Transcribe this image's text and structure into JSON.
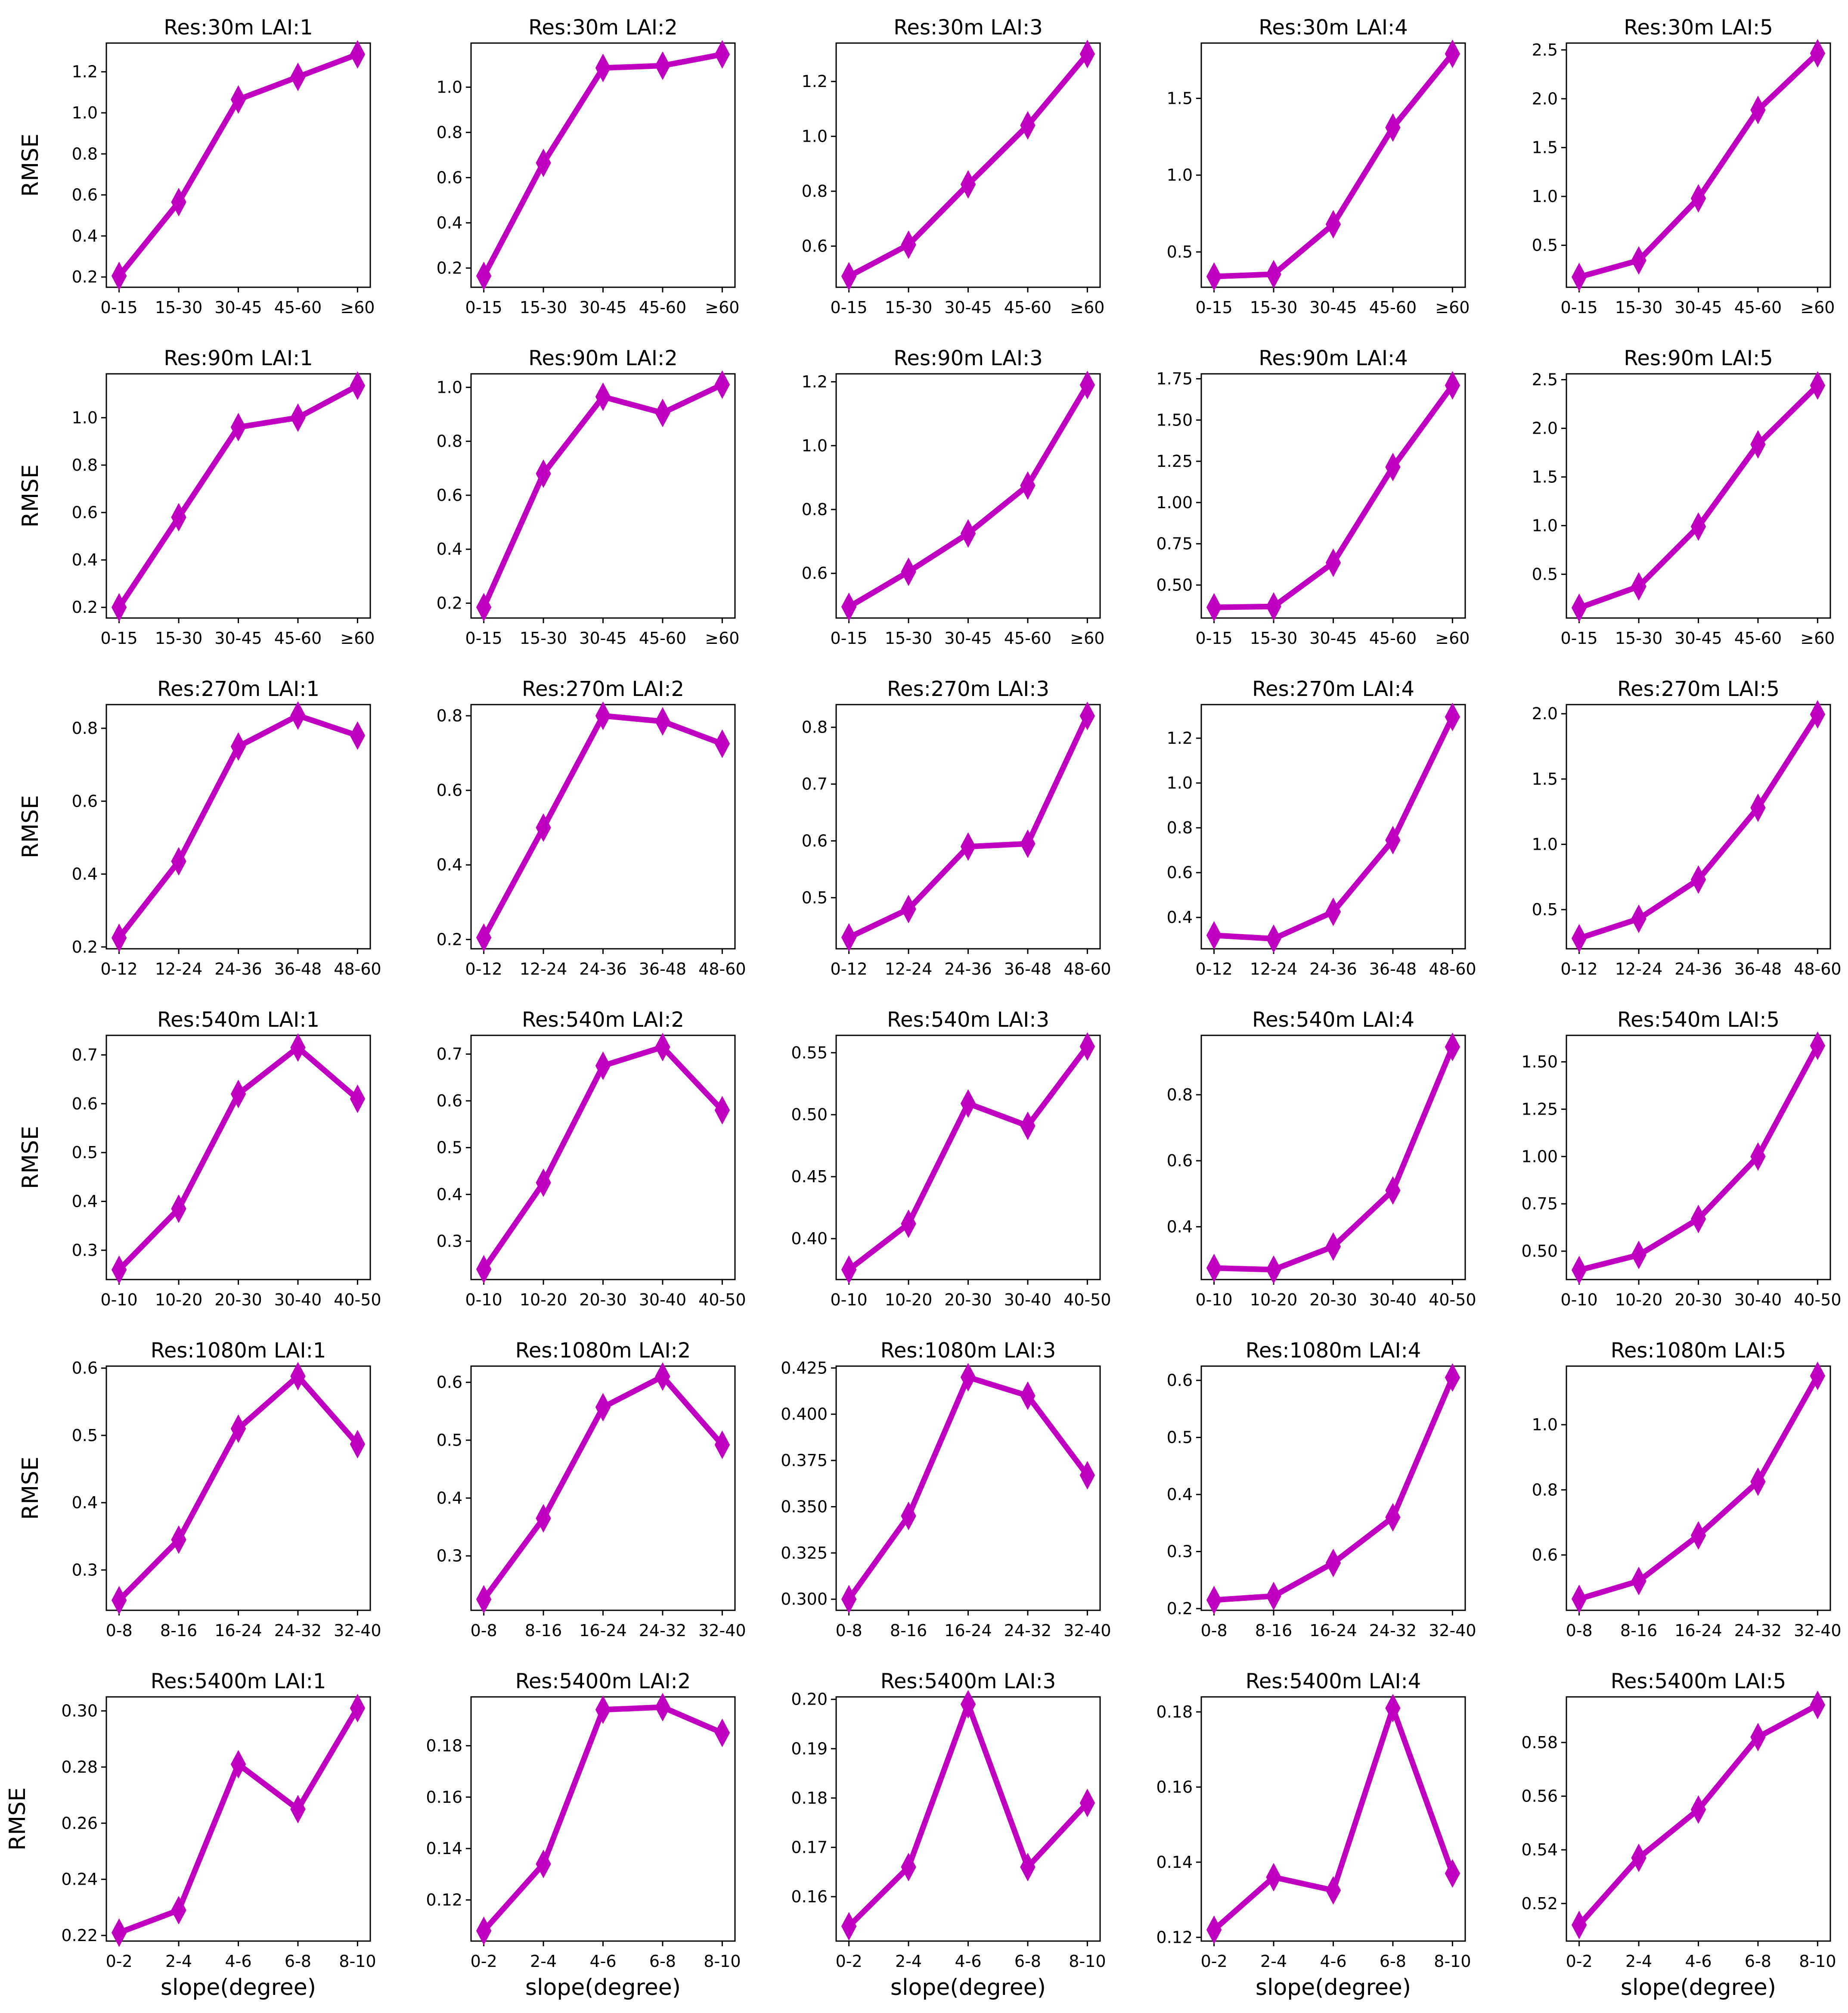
{
  "figure": {
    "ylabel": "RMSE",
    "xlabel": "slope(degree)",
    "line_color": "#C000C0",
    "marker": "thin-diamond"
  },
  "chart_data": [
    {
      "type": "line",
      "title": "Res:30m    LAI:1",
      "categories": [
        "0-15",
        "15-30",
        "30-45",
        "45-60",
        "≥60"
      ],
      "values": [
        0.205,
        0.565,
        1.065,
        1.175,
        1.285
      ],
      "yticks": [
        "0.2",
        "0.4",
        "0.6",
        "0.8",
        "1.0",
        "1.2"
      ],
      "ylim": [
        0.15,
        1.34
      ],
      "xlabel": "",
      "ylabel": "RMSE"
    },
    {
      "type": "line",
      "title": "Res:30m    LAI:2",
      "categories": [
        "0-15",
        "15-30",
        "30-45",
        "45-60",
        "≥60"
      ],
      "values": [
        0.165,
        0.665,
        1.085,
        1.095,
        1.145
      ],
      "yticks": [
        "0.2",
        "0.4",
        "0.6",
        "0.8",
        "1.0"
      ],
      "ylim": [
        0.115,
        1.195
      ],
      "xlabel": "",
      "ylabel": ""
    },
    {
      "type": "line",
      "title": "Res:30m    LAI:3",
      "categories": [
        "0-15",
        "15-30",
        "30-45",
        "45-60",
        "≥60"
      ],
      "values": [
        0.49,
        0.605,
        0.825,
        1.04,
        1.3
      ],
      "yticks": [
        "0.6",
        "0.8",
        "1.0",
        "1.2"
      ],
      "ylim": [
        0.45,
        1.34
      ],
      "xlabel": "",
      "ylabel": ""
    },
    {
      "type": "line",
      "title": "Res:30m    LAI:4",
      "categories": [
        "0-15",
        "15-30",
        "30-45",
        "45-60",
        "≥60"
      ],
      "values": [
        0.34,
        0.355,
        0.68,
        1.31,
        1.79
      ],
      "yticks": [
        "0.5",
        "1.0",
        "1.5"
      ],
      "ylim": [
        0.27,
        1.86
      ],
      "xlabel": "",
      "ylabel": ""
    },
    {
      "type": "line",
      "title": "Res:30m    LAI:5",
      "categories": [
        "0-15",
        "15-30",
        "30-45",
        "45-60",
        "≥60"
      ],
      "values": [
        0.175,
        0.345,
        0.98,
        1.885,
        2.465
      ],
      "yticks": [
        "0.5",
        "1.0",
        "1.5",
        "2.0",
        "2.5"
      ],
      "ylim": [
        0.07,
        2.57
      ],
      "xlabel": "",
      "ylabel": ""
    },
    {
      "type": "line",
      "title": "Res:90m    LAI:1",
      "categories": [
        "0-15",
        "15-30",
        "30-45",
        "45-60",
        "≥60"
      ],
      "values": [
        0.2,
        0.58,
        0.96,
        1.0,
        1.135
      ],
      "yticks": [
        "0.2",
        "0.4",
        "0.6",
        "0.8",
        "1.0"
      ],
      "ylim": [
        0.155,
        1.185
      ],
      "xlabel": "",
      "ylabel": "RMSE"
    },
    {
      "type": "line",
      "title": "Res:90m    LAI:2",
      "categories": [
        "0-15",
        "15-30",
        "30-45",
        "45-60",
        "≥60"
      ],
      "values": [
        0.185,
        0.68,
        0.965,
        0.905,
        1.01
      ],
      "yticks": [
        "0.2",
        "0.4",
        "0.6",
        "0.8",
        "1.0"
      ],
      "ylim": [
        0.145,
        1.05
      ],
      "xlabel": "",
      "ylabel": ""
    },
    {
      "type": "line",
      "title": "Res:90m    LAI:3",
      "categories": [
        "0-15",
        "15-30",
        "30-45",
        "45-60",
        "≥60"
      ],
      "values": [
        0.495,
        0.605,
        0.725,
        0.875,
        1.19
      ],
      "yticks": [
        "0.6",
        "0.8",
        "1.0",
        "1.2"
      ],
      "ylim": [
        0.46,
        1.225
      ],
      "xlabel": "",
      "ylabel": ""
    },
    {
      "type": "line",
      "title": "Res:90m    LAI:4",
      "categories": [
        "0-15",
        "15-30",
        "30-45",
        "45-60",
        "≥60"
      ],
      "values": [
        0.365,
        0.37,
        0.635,
        1.215,
        1.71
      ],
      "yticks": [
        "0.50",
        "0.75",
        "1.00",
        "1.25",
        "1.50",
        "1.75"
      ],
      "ylim": [
        0.3,
        1.78
      ],
      "xlabel": "",
      "ylabel": ""
    },
    {
      "type": "line",
      "title": "Res:90m    LAI:5",
      "categories": [
        "0-15",
        "15-30",
        "30-45",
        "45-60",
        "≥60"
      ],
      "values": [
        0.155,
        0.375,
        0.99,
        1.835,
        2.44
      ],
      "yticks": [
        "0.5",
        "1.0",
        "1.5",
        "2.0",
        "2.5"
      ],
      "ylim": [
        0.05,
        2.56
      ],
      "xlabel": "",
      "ylabel": ""
    },
    {
      "type": "line",
      "title": "Res:270m    LAI:1",
      "categories": [
        "0-12",
        "12-24",
        "24-36",
        "36-48",
        "48-60"
      ],
      "values": [
        0.225,
        0.435,
        0.75,
        0.835,
        0.78
      ],
      "yticks": [
        "0.2",
        "0.4",
        "0.6",
        "0.8"
      ],
      "ylim": [
        0.195,
        0.865
      ],
      "xlabel": "",
      "ylabel": "RMSE"
    },
    {
      "type": "line",
      "title": "Res:270m    LAI:2",
      "categories": [
        "0-12",
        "12-24",
        "24-36",
        "36-48",
        "48-60"
      ],
      "values": [
        0.205,
        0.5,
        0.8,
        0.785,
        0.725
      ],
      "yticks": [
        "0.2",
        "0.4",
        "0.6",
        "0.8"
      ],
      "ylim": [
        0.175,
        0.83
      ],
      "xlabel": "",
      "ylabel": ""
    },
    {
      "type": "line",
      "title": "Res:270m    LAI:3",
      "categories": [
        "0-12",
        "12-24",
        "24-36",
        "36-48",
        "48-60"
      ],
      "values": [
        0.43,
        0.48,
        0.59,
        0.595,
        0.82
      ],
      "yticks": [
        "0.5",
        "0.6",
        "0.7",
        "0.8"
      ],
      "ylim": [
        0.41,
        0.84
      ],
      "xlabel": "",
      "ylabel": ""
    },
    {
      "type": "line",
      "title": "Res:270m    LAI:4",
      "categories": [
        "0-12",
        "12-24",
        "24-36",
        "36-48",
        "48-60"
      ],
      "values": [
        0.32,
        0.305,
        0.425,
        0.745,
        1.295
      ],
      "yticks": [
        "0.4",
        "0.6",
        "0.8",
        "1.0",
        "1.2"
      ],
      "ylim": [
        0.26,
        1.35
      ],
      "xlabel": "",
      "ylabel": ""
    },
    {
      "type": "line",
      "title": "Res:270m    LAI:5",
      "categories": [
        "0-12",
        "12-24",
        "24-36",
        "36-48",
        "48-60"
      ],
      "values": [
        0.28,
        0.43,
        0.73,
        1.28,
        1.995
      ],
      "yticks": [
        "0.5",
        "1.0",
        "1.5",
        "2.0"
      ],
      "ylim": [
        0.2,
        2.07
      ],
      "xlabel": "",
      "ylabel": ""
    },
    {
      "type": "line",
      "title": "Res:540m    LAI:1",
      "categories": [
        "0-10",
        "10-20",
        "20-30",
        "30-40",
        "40-50"
      ],
      "values": [
        0.26,
        0.385,
        0.62,
        0.715,
        0.61
      ],
      "yticks": [
        "0.3",
        "0.4",
        "0.5",
        "0.6",
        "0.7"
      ],
      "ylim": [
        0.24,
        0.74
      ],
      "xlabel": "",
      "ylabel": "RMSE"
    },
    {
      "type": "line",
      "title": "Res:540m    LAI:2",
      "categories": [
        "0-10",
        "10-20",
        "20-30",
        "30-40",
        "40-50"
      ],
      "values": [
        0.24,
        0.425,
        0.675,
        0.715,
        0.58
      ],
      "yticks": [
        "0.3",
        "0.4",
        "0.5",
        "0.6",
        "0.7"
      ],
      "ylim": [
        0.218,
        0.74
      ],
      "xlabel": "",
      "ylabel": ""
    },
    {
      "type": "line",
      "title": "Res:540m    LAI:3",
      "categories": [
        "0-10",
        "10-20",
        "20-30",
        "30-40",
        "40-50"
      ],
      "values": [
        0.375,
        0.412,
        0.509,
        0.491,
        0.555
      ],
      "yticks": [
        "0.40",
        "0.45",
        "0.50",
        "0.55"
      ],
      "ylim": [
        0.367,
        0.564
      ],
      "xlabel": "",
      "ylabel": ""
    },
    {
      "type": "line",
      "title": "Res:540m    LAI:4",
      "categories": [
        "0-10",
        "10-20",
        "20-30",
        "30-40",
        "40-50"
      ],
      "values": [
        0.275,
        0.27,
        0.34,
        0.51,
        0.945
      ],
      "yticks": [
        "0.4",
        "0.6",
        "0.8"
      ],
      "ylim": [
        0.24,
        0.98
      ],
      "xlabel": "",
      "ylabel": ""
    },
    {
      "type": "line",
      "title": "Res:540m    LAI:5",
      "categories": [
        "0-10",
        "10-20",
        "20-30",
        "30-40",
        "40-50"
      ],
      "values": [
        0.4,
        0.48,
        0.67,
        1.0,
        1.585
      ],
      "yticks": [
        "0.50",
        "0.75",
        "1.00",
        "1.25",
        "1.50"
      ],
      "ylim": [
        0.35,
        1.64
      ],
      "xlabel": "",
      "ylabel": ""
    },
    {
      "type": "line",
      "title": "Res:1080m    LAI:1",
      "categories": [
        "0-8",
        "8-16",
        "16-24",
        "24-32",
        "32-40"
      ],
      "values": [
        0.255,
        0.345,
        0.51,
        0.588,
        0.487
      ],
      "yticks": [
        "0.3",
        "0.4",
        "0.5",
        "0.6"
      ],
      "ylim": [
        0.24,
        0.603
      ],
      "xlabel": "",
      "ylabel": "RMSE"
    },
    {
      "type": "line",
      "title": "Res:1080m    LAI:2",
      "categories": [
        "0-8",
        "8-16",
        "16-24",
        "24-32",
        "32-40"
      ],
      "values": [
        0.225,
        0.365,
        0.557,
        0.61,
        0.492
      ],
      "yticks": [
        "0.3",
        "0.4",
        "0.5",
        "0.6"
      ],
      "ylim": [
        0.206,
        0.628
      ],
      "xlabel": "",
      "ylabel": ""
    },
    {
      "type": "line",
      "title": "Res:1080m    LAI:3",
      "categories": [
        "0-8",
        "8-16",
        "16-24",
        "24-32",
        "32-40"
      ],
      "values": [
        0.3,
        0.345,
        0.42,
        0.41,
        0.367
      ],
      "yticks": [
        "0.300",
        "0.325",
        "0.350",
        "0.375",
        "0.400",
        "0.425"
      ],
      "ylim": [
        0.294,
        0.426
      ],
      "xlabel": "",
      "ylabel": ""
    },
    {
      "type": "line",
      "title": "Res:1080m    LAI:4",
      "categories": [
        "0-8",
        "8-16",
        "16-24",
        "24-32",
        "32-40"
      ],
      "values": [
        0.215,
        0.222,
        0.28,
        0.36,
        0.605
      ],
      "yticks": [
        "0.2",
        "0.3",
        "0.4",
        "0.5",
        "0.6"
      ],
      "ylim": [
        0.197,
        0.625
      ],
      "xlabel": "",
      "ylabel": ""
    },
    {
      "type": "line",
      "title": "Res:1080m    LAI:5",
      "categories": [
        "0-8",
        "8-16",
        "16-24",
        "24-32",
        "32-40"
      ],
      "values": [
        0.465,
        0.52,
        0.66,
        0.825,
        1.15
      ],
      "yticks": [
        "0.6",
        "0.8",
        "1.0"
      ],
      "ylim": [
        0.43,
        1.18
      ],
      "xlabel": "",
      "ylabel": ""
    },
    {
      "type": "line",
      "title": "Res:5400m    LAI:1",
      "categories": [
        "0-2",
        "2-4",
        "4-6",
        "6-8",
        "8-10"
      ],
      "values": [
        0.221,
        0.229,
        0.281,
        0.265,
        0.301
      ],
      "yticks": [
        "0.22",
        "0.24",
        "0.26",
        "0.28",
        "0.30"
      ],
      "ylim": [
        0.218,
        0.305
      ],
      "xlabel": "slope(degree)",
      "ylabel": "RMSE"
    },
    {
      "type": "line",
      "title": "Res:5400m    LAI:2",
      "categories": [
        "0-2",
        "2-4",
        "4-6",
        "6-8",
        "8-10"
      ],
      "values": [
        0.108,
        0.134,
        0.194,
        0.195,
        0.185
      ],
      "yticks": [
        "0.12",
        "0.14",
        "0.16",
        "0.18"
      ],
      "ylim": [
        0.104,
        0.199
      ],
      "xlabel": "slope(degree)",
      "ylabel": ""
    },
    {
      "type": "line",
      "title": "Res:5400m    LAI:3",
      "categories": [
        "0-2",
        "2-4",
        "4-6",
        "6-8",
        "8-10"
      ],
      "values": [
        0.154,
        0.166,
        0.199,
        0.166,
        0.179
      ],
      "yticks": [
        "0.16",
        "0.17",
        "0.18",
        "0.19",
        "0.20"
      ],
      "ylim": [
        0.151,
        0.2005
      ],
      "xlabel": "slope(degree)",
      "ylabel": ""
    },
    {
      "type": "line",
      "title": "Res:5400m    LAI:4",
      "categories": [
        "0-2",
        "2-4",
        "4-6",
        "6-8",
        "8-10"
      ],
      "values": [
        0.122,
        0.136,
        0.1325,
        0.181,
        0.137
      ],
      "yticks": [
        "0.12",
        "0.14",
        "0.16",
        "0.18"
      ],
      "ylim": [
        0.119,
        0.184
      ],
      "xlabel": "slope(degree)",
      "ylabel": ""
    },
    {
      "type": "line",
      "title": "Res:5400m    LAI:5",
      "categories": [
        "0-2",
        "2-4",
        "4-6",
        "6-8",
        "8-10"
      ],
      "values": [
        0.512,
        0.537,
        0.555,
        0.582,
        0.594
      ],
      "yticks": [
        "0.52",
        "0.54",
        "0.56",
        "0.58"
      ],
      "ylim": [
        0.506,
        0.597
      ],
      "xlabel": "slope(degree)",
      "ylabel": ""
    }
  ]
}
